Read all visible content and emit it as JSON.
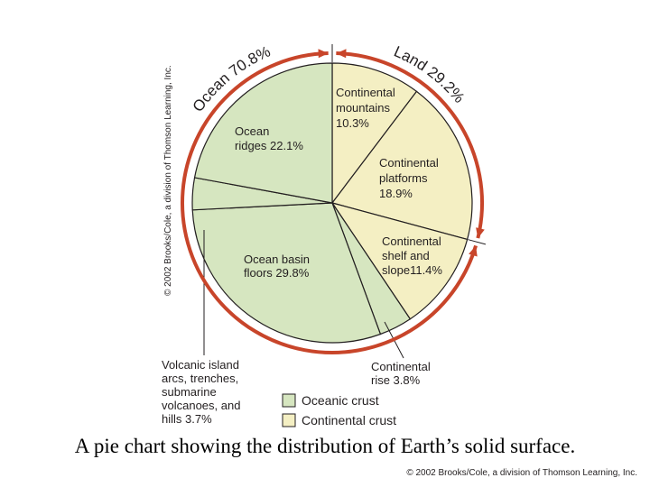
{
  "chart_data": {
    "type": "pie",
    "title": "",
    "slices": [
      {
        "label_lines": [
          "Continental",
          "mountains",
          "10.3%"
        ],
        "value": 10.3,
        "group": "Continental crust"
      },
      {
        "label_lines": [
          "Continental",
          "platforms",
          "18.9%"
        ],
        "value": 18.9,
        "group": "Continental crust"
      },
      {
        "label_lines": [
          "Continental",
          "shelf and",
          "slope11.4%"
        ],
        "value": 11.4,
        "group": "Continental crust"
      },
      {
        "label_lines": [
          "Continental",
          "rise 3.8%"
        ],
        "value": 3.8,
        "group": "Oceanic crust"
      },
      {
        "label_lines": [
          "Ocean basin",
          "floors 29.8%"
        ],
        "value": 29.8,
        "group": "Oceanic crust"
      },
      {
        "label_lines": [
          "Volcanic island",
          "arcs, trenches,",
          "submarine",
          "volcanoes, and",
          "hills 3.7%"
        ],
        "value": 3.7,
        "group": "Oceanic crust"
      },
      {
        "label_lines": [
          "Ocean",
          "ridges 22.1%"
        ],
        "value": 22.1,
        "group": "Oceanic crust"
      }
    ],
    "arc_labels": [
      {
        "text": "Ocean 70.8%",
        "value": 70.8
      },
      {
        "text": "Land 29.2%",
        "value": 29.2
      }
    ],
    "legend": [
      {
        "label": "Oceanic crust",
        "color": "#d6e6c0"
      },
      {
        "label": "Continental crust",
        "color": "#f4efc3"
      }
    ],
    "legend_placement": "bottom-center"
  },
  "colors": {
    "oceanic": "#d6e6c0",
    "continental": "#f4efc3",
    "arc": "#c8452a",
    "outline": "#231f20"
  },
  "side_credit": "© 2002 Brooks/Cole, a division of Thomson Learning, Inc.",
  "caption": "A pie chart showing the distribution of Earth’s solid surface.",
  "credit": "© 2002 Brooks/Cole, a division of Thomson Learning, Inc."
}
